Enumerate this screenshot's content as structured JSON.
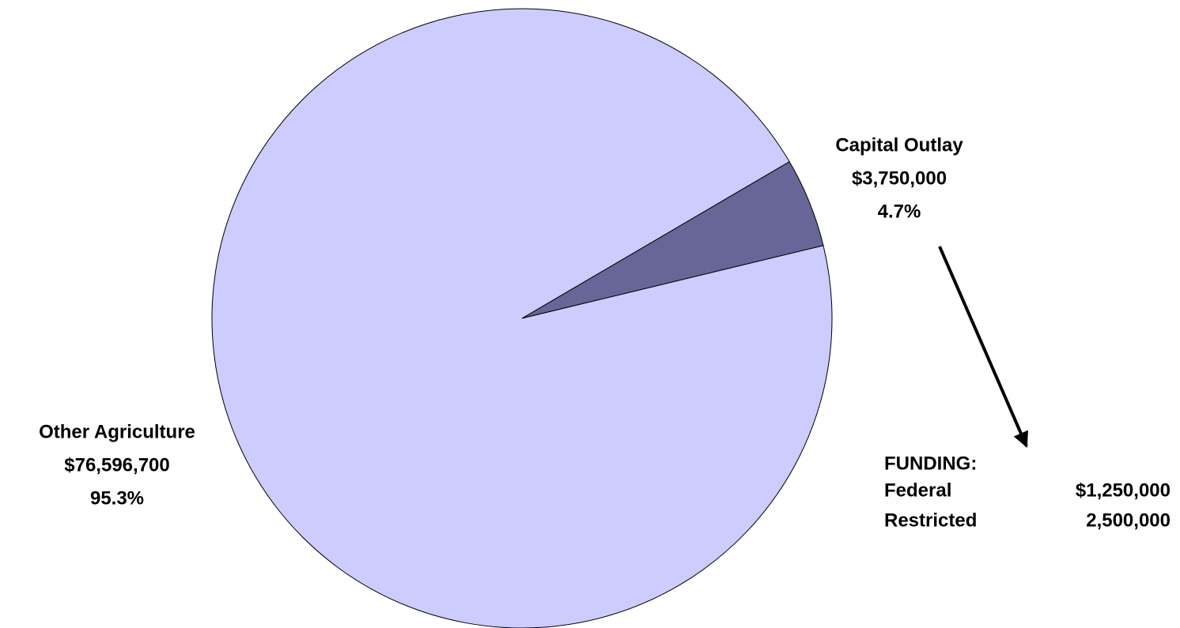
{
  "chart_data": {
    "type": "pie",
    "categories": [
      "Capital Outlay",
      "Other Agriculture"
    ],
    "values": [
      3750000,
      76596700
    ],
    "value_labels": [
      "$3,750,000",
      "$76,596,700"
    ],
    "percents": [
      4.7,
      95.3
    ],
    "percent_labels": [
      "4.7%",
      "95.3%"
    ],
    "colors": [
      "#666699",
      "#ccccff"
    ],
    "annotation": {
      "title": "FUNDING:",
      "rows": [
        [
          "Federal",
          "$1,250,000"
        ],
        [
          "Restricted",
          "2,500,000"
        ]
      ]
    }
  }
}
